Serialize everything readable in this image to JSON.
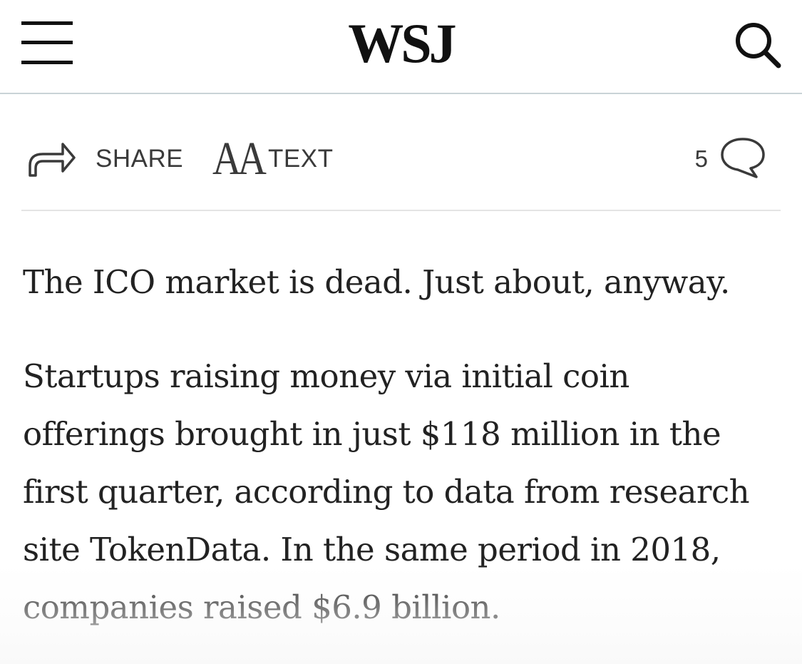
{
  "header": {
    "logo": "WSJ",
    "menu_icon": "hamburger-menu-icon",
    "search_icon": "search-icon"
  },
  "toolbar": {
    "share_label": "SHARE",
    "share_icon": "share-arrow-icon",
    "text_icon_glyph": "AA",
    "text_label": "TEXT",
    "comment_count": "5",
    "comment_icon": "speech-bubble-icon"
  },
  "article": {
    "paragraphs": [
      "The ICO market is dead. Just about, anyway.",
      "Startups raising money via initial coin offerings brought in just $118 million in the first quarter, according to data from research site TokenData. In the same period in 2018, companies raised $6.9 billion."
    ]
  },
  "colors": {
    "divider": "#c9d3d7",
    "text": "#222222",
    "icon": "#3a3a3a"
  }
}
